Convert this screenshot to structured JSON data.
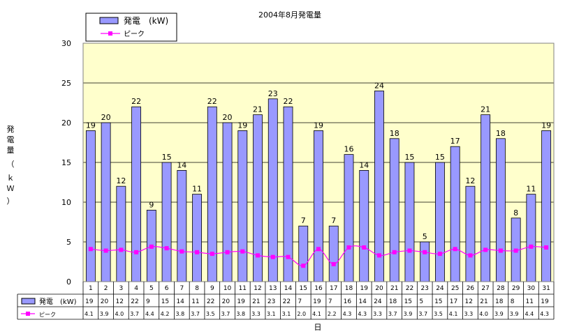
{
  "chart_data": {
    "type": "bar",
    "title": "2004年8月発電量",
    "xlabel": "日",
    "ylabel": "発電量（kW）",
    "ylim": [
      0,
      30
    ],
    "yticks": [
      0,
      5,
      10,
      15,
      20,
      25,
      30
    ],
    "grid": true,
    "legend_position": "top-left",
    "data_table": true,
    "categories": [
      "1",
      "2",
      "3",
      "4",
      "5",
      "6",
      "7",
      "8",
      "9",
      "10",
      "11",
      "12",
      "13",
      "14",
      "15",
      "16",
      "17",
      "18",
      "19",
      "20",
      "21",
      "22",
      "23",
      "24",
      "25",
      "26",
      "27",
      "28",
      "29",
      "30",
      "31"
    ],
    "series": [
      {
        "name": "発電　(kW)",
        "type": "bar",
        "color": "#9999ff",
        "values": [
          19,
          20,
          12,
          22,
          9,
          15,
          14,
          11,
          22,
          20,
          19,
          21,
          23,
          22,
          7,
          19,
          7,
          16,
          14,
          24,
          18,
          15,
          5,
          15,
          17,
          12,
          21,
          18,
          8,
          11,
          19
        ]
      },
      {
        "name": "ピーク",
        "type": "line",
        "color": "#ff00ff",
        "values": [
          4.1,
          3.9,
          4.0,
          3.7,
          4.4,
          4.2,
          3.8,
          3.7,
          3.5,
          3.7,
          3.8,
          3.3,
          3.1,
          3.1,
          2.0,
          4.1,
          2.2,
          4.3,
          4.3,
          3.3,
          3.7,
          3.9,
          3.7,
          3.5,
          4.1,
          3.3,
          4.0,
          3.9,
          3.9,
          4.4,
          4.3
        ],
        "labels": [
          "4.1",
          "3.9",
          "4.0",
          "3.7",
          "4.4",
          "4.2",
          "3.8",
          "3.7",
          "3.5",
          "3.7",
          "3.8",
          "3.3",
          "3.1",
          "3.1",
          "2.0",
          "4.1",
          "2.2",
          "4.3",
          "4.3",
          "3.3",
          "3.7",
          "3.9",
          "3.7",
          "3.5",
          "4.1",
          "3.3",
          "4.0",
          "3.9",
          "3.9",
          "4.4",
          "4.3"
        ]
      }
    ]
  }
}
